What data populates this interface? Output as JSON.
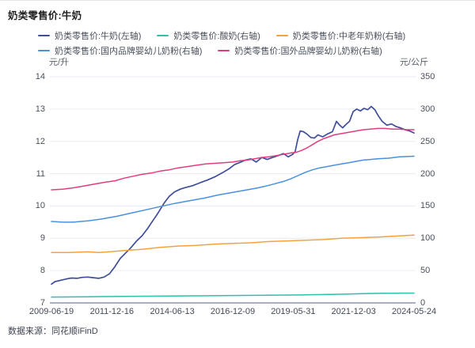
{
  "chart_data": {
    "type": "line",
    "title": "奶类零售价:牛奶",
    "source": "数据来源：同花顺iFinD",
    "grid": true,
    "legend_position": "top",
    "x_axis": {
      "labels": [
        "2009-06-19",
        "2011-12-16",
        "2014-06-13",
        "2016-12-09",
        "2019-05-31",
        "2021-12-03",
        "2024-05-24"
      ],
      "note": "x values in series are fractions of the span 2009-06-19 → 2024-05-24"
    },
    "y_axis_left": {
      "unit": "元/升",
      "min": 7,
      "max": 14,
      "ticks": [
        "14",
        "13",
        "12",
        "11",
        "10",
        "9",
        "8",
        "7"
      ]
    },
    "y_axis_right": {
      "unit": "元/公斤",
      "min": 0,
      "max": 350,
      "ticks": [
        "350",
        "300",
        "250",
        "200",
        "150",
        "100",
        "50",
        "0"
      ]
    },
    "series": [
      {
        "name": "奶类零售价:牛奶(左轴)",
        "axis": "left",
        "color": "#3F4D9B",
        "points": [
          [
            0,
            7.58
          ],
          [
            0.01,
            7.66
          ],
          [
            0.025,
            7.7
          ],
          [
            0.04,
            7.74
          ],
          [
            0.055,
            7.77
          ],
          [
            0.07,
            7.76
          ],
          [
            0.085,
            7.79
          ],
          [
            0.1,
            7.8
          ],
          [
            0.115,
            7.78
          ],
          [
            0.13,
            7.76
          ],
          [
            0.145,
            7.8
          ],
          [
            0.16,
            7.9
          ],
          [
            0.175,
            8.12
          ],
          [
            0.19,
            8.38
          ],
          [
            0.205,
            8.55
          ],
          [
            0.22,
            8.72
          ],
          [
            0.235,
            8.92
          ],
          [
            0.25,
            9.08
          ],
          [
            0.265,
            9.3
          ],
          [
            0.28,
            9.55
          ],
          [
            0.295,
            9.8
          ],
          [
            0.31,
            10.08
          ],
          [
            0.325,
            10.3
          ],
          [
            0.34,
            10.44
          ],
          [
            0.355,
            10.52
          ],
          [
            0.37,
            10.57
          ],
          [
            0.39,
            10.63
          ],
          [
            0.41,
            10.72
          ],
          [
            0.43,
            10.8
          ],
          [
            0.45,
            10.9
          ],
          [
            0.47,
            11.02
          ],
          [
            0.49,
            11.15
          ],
          [
            0.505,
            11.28
          ],
          [
            0.52,
            11.35
          ],
          [
            0.535,
            11.42
          ],
          [
            0.55,
            11.46
          ],
          [
            0.565,
            11.36
          ],
          [
            0.58,
            11.5
          ],
          [
            0.595,
            11.44
          ],
          [
            0.61,
            11.5
          ],
          [
            0.625,
            11.56
          ],
          [
            0.64,
            11.62
          ],
          [
            0.653,
            11.52
          ],
          [
            0.665,
            11.6
          ],
          [
            0.672,
            11.68
          ],
          [
            0.679,
            12.05
          ],
          [
            0.686,
            12.32
          ],
          [
            0.695,
            12.3
          ],
          [
            0.705,
            12.22
          ],
          [
            0.715,
            12.12
          ],
          [
            0.725,
            12.1
          ],
          [
            0.735,
            12.2
          ],
          [
            0.748,
            12.14
          ],
          [
            0.76,
            12.22
          ],
          [
            0.775,
            12.3
          ],
          [
            0.786,
            12.62
          ],
          [
            0.795,
            12.5
          ],
          [
            0.803,
            12.42
          ],
          [
            0.812,
            12.52
          ],
          [
            0.822,
            12.62
          ],
          [
            0.832,
            12.92
          ],
          [
            0.842,
            13.0
          ],
          [
            0.852,
            12.94
          ],
          [
            0.862,
            13.02
          ],
          [
            0.872,
            12.98
          ],
          [
            0.882,
            13.08
          ],
          [
            0.892,
            12.98
          ],
          [
            0.902,
            12.78
          ],
          [
            0.912,
            12.62
          ],
          [
            0.925,
            12.5
          ],
          [
            0.938,
            12.54
          ],
          [
            0.95,
            12.46
          ],
          [
            0.962,
            12.42
          ],
          [
            0.975,
            12.36
          ],
          [
            0.988,
            12.32
          ],
          [
            1,
            12.26
          ]
        ]
      },
      {
        "name": "奶类零售价:酸奶(右轴)",
        "axis": "right",
        "color": "#2FBFAE",
        "points": [
          [
            0,
            9
          ],
          [
            0.1,
            9.5
          ],
          [
            0.2,
            10
          ],
          [
            0.3,
            10.5
          ],
          [
            0.4,
            11
          ],
          [
            0.5,
            11.5
          ],
          [
            0.6,
            12
          ],
          [
            0.7,
            12.5
          ],
          [
            0.75,
            13
          ],
          [
            0.8,
            13.5
          ],
          [
            0.85,
            14.2
          ],
          [
            0.9,
            14.8
          ],
          [
            0.95,
            15
          ],
          [
            1,
            15.2
          ]
        ]
      },
      {
        "name": "奶类零售价:中老年奶粉(右轴)",
        "axis": "right",
        "color": "#F6A13F",
        "points": [
          [
            0,
            78
          ],
          [
            0.05,
            78
          ],
          [
            0.1,
            79
          ],
          [
            0.13,
            78
          ],
          [
            0.16,
            79
          ],
          [
            0.2,
            81
          ],
          [
            0.25,
            83
          ],
          [
            0.3,
            86
          ],
          [
            0.35,
            88
          ],
          [
            0.4,
            89
          ],
          [
            0.45,
            91
          ],
          [
            0.5,
            92
          ],
          [
            0.55,
            93
          ],
          [
            0.6,
            95
          ],
          [
            0.65,
            96
          ],
          [
            0.7,
            97
          ],
          [
            0.75,
            98
          ],
          [
            0.8,
            100
          ],
          [
            0.85,
            101
          ],
          [
            0.9,
            102
          ],
          [
            0.94,
            103
          ],
          [
            0.97,
            104
          ],
          [
            1,
            105
          ]
        ]
      },
      {
        "name": "奶类零售价:国内品牌婴幼儿奶粉(右轴)",
        "axis": "right",
        "color": "#4A90DC",
        "points": [
          [
            0,
            126
          ],
          [
            0.03,
            125
          ],
          [
            0.06,
            125
          ],
          [
            0.1,
            127
          ],
          [
            0.14,
            130
          ],
          [
            0.18,
            134
          ],
          [
            0.22,
            139
          ],
          [
            0.26,
            144
          ],
          [
            0.3,
            149
          ],
          [
            0.34,
            154
          ],
          [
            0.38,
            158
          ],
          [
            0.42,
            162
          ],
          [
            0.46,
            167
          ],
          [
            0.5,
            171
          ],
          [
            0.54,
            175
          ],
          [
            0.57,
            178
          ],
          [
            0.6,
            182
          ],
          [
            0.62,
            185
          ],
          [
            0.64,
            188
          ],
          [
            0.66,
            192
          ],
          [
            0.68,
            197
          ],
          [
            0.7,
            202
          ],
          [
            0.72,
            206
          ],
          [
            0.74,
            209
          ],
          [
            0.76,
            211
          ],
          [
            0.78,
            213
          ],
          [
            0.8,
            215
          ],
          [
            0.82,
            217
          ],
          [
            0.84,
            219
          ],
          [
            0.86,
            221
          ],
          [
            0.88,
            222
          ],
          [
            0.9,
            223
          ],
          [
            0.93,
            224
          ],
          [
            0.96,
            226
          ],
          [
            1,
            227
          ]
        ]
      },
      {
        "name": "奶类零售价:国外品牌婴幼儿奶粉(右轴)",
        "axis": "right",
        "color": "#E23C7F",
        "points": [
          [
            0,
            175
          ],
          [
            0.03,
            176
          ],
          [
            0.06,
            178
          ],
          [
            0.09,
            181
          ],
          [
            0.12,
            184
          ],
          [
            0.15,
            187
          ],
          [
            0.175,
            189
          ],
          [
            0.2,
            193
          ],
          [
            0.225,
            196
          ],
          [
            0.25,
            199
          ],
          [
            0.275,
            201
          ],
          [
            0.3,
            204
          ],
          [
            0.325,
            206
          ],
          [
            0.35,
            209
          ],
          [
            0.375,
            211
          ],
          [
            0.4,
            213
          ],
          [
            0.425,
            215
          ],
          [
            0.45,
            216
          ],
          [
            0.475,
            217
          ],
          [
            0.5,
            218
          ],
          [
            0.52,
            220
          ],
          [
            0.54,
            221
          ],
          [
            0.56,
            223
          ],
          [
            0.58,
            225
          ],
          [
            0.6,
            226
          ],
          [
            0.62,
            228
          ],
          [
            0.64,
            230
          ],
          [
            0.66,
            232
          ],
          [
            0.675,
            233
          ],
          [
            0.69,
            236
          ],
          [
            0.705,
            240
          ],
          [
            0.72,
            245
          ],
          [
            0.735,
            250
          ],
          [
            0.75,
            254
          ],
          [
            0.765,
            257
          ],
          [
            0.78,
            260
          ],
          [
            0.8,
            262
          ],
          [
            0.82,
            264
          ],
          [
            0.84,
            266
          ],
          [
            0.86,
            268
          ],
          [
            0.88,
            269
          ],
          [
            0.9,
            270
          ],
          [
            0.92,
            270
          ],
          [
            0.94,
            269
          ],
          [
            0.96,
            269
          ],
          [
            0.98,
            268
          ],
          [
            1,
            268
          ]
        ]
      }
    ],
    "colors": {
      "grid": "#E9EBF4",
      "axis_line": "#A8AFC2",
      "tick_text": "#4A4F5C"
    }
  }
}
